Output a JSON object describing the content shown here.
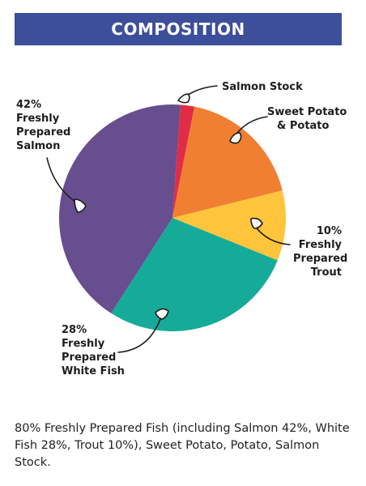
{
  "header": {
    "title": "COMPOSITION"
  },
  "chart_data": {
    "type": "pie",
    "title": "COMPOSITION",
    "slices": [
      {
        "name": "Salmon Stock",
        "value": 2,
        "color": "#e02c46"
      },
      {
        "name": "Sweet Potato & Potato",
        "value": 18,
        "color": "#f07f32"
      },
      {
        "name": "Freshly Prepared Trout",
        "value": 10,
        "color": "#fdc43c"
      },
      {
        "name": "Freshly Prepared White Fish",
        "value": 28,
        "color": "#16ab98"
      },
      {
        "name": "Freshly Prepared Salmon",
        "value": 42,
        "color": "#664e8f"
      }
    ]
  },
  "labels": {
    "salmon_stock": [
      "Salmon Stock"
    ],
    "sweet_potato": [
      "Sweet Potato",
      "& Potato"
    ],
    "trout": [
      "10%",
      "Freshly",
      "Prepared",
      "Trout"
    ],
    "white_fish": [
      "28%",
      "Freshly",
      "Prepared",
      "White Fish"
    ],
    "salmon": [
      "42%",
      "Freshly",
      "Prepared",
      "Salmon"
    ]
  },
  "description": "80% Freshly Prepared Fish (including Salmon 42%, White Fish 28%, Trout 10%), Sweet Potato, Potato, Salmon Stock."
}
